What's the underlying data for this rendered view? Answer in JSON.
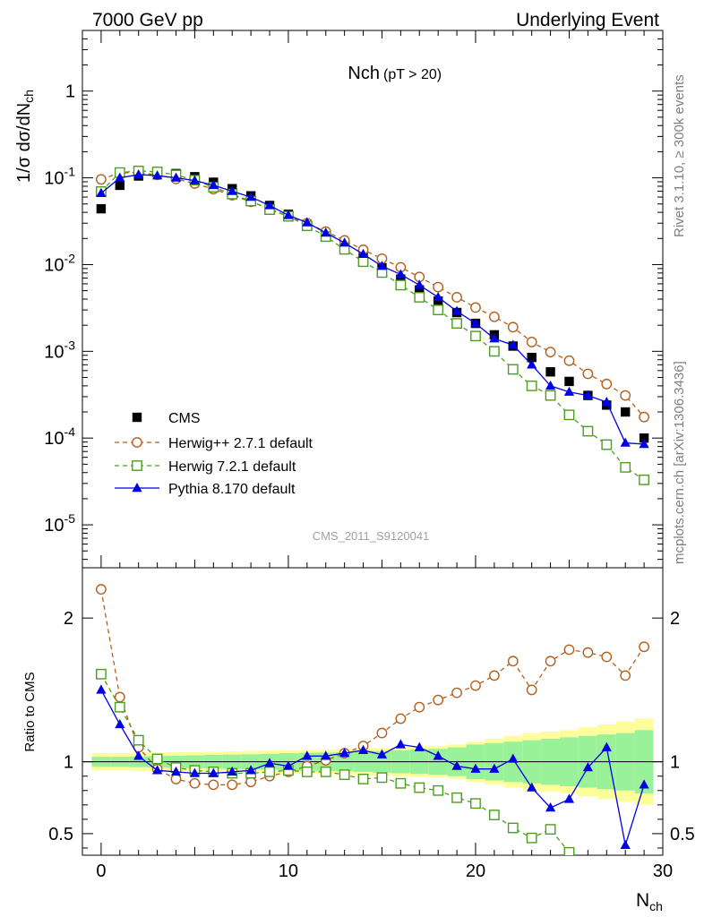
{
  "header": {
    "left": "7000 GeV pp",
    "right": "Underlying Event"
  },
  "side_text": {
    "rivet": "Rivet 3.1.10, ≥ 300k events",
    "mcplots": "mcplots.cern.ch [arXiv:1306.3436]"
  },
  "colors": {
    "cms": "#000000",
    "herwigpp": "#b2601f",
    "herwig7": "#4d9e1c",
    "pythia": "#0000e6",
    "band_inner": "#99f299",
    "band_outer": "#fdfd9b"
  },
  "chart_data": [
    {
      "type": "scatter",
      "title": "Nch",
      "title_suffix": "(pT > 20)",
      "watermark": "CMS_2011_S9120041",
      "ylabel": "1/σ dσ/dN",
      "ylabel_sub": "ch",
      "yscale": "log",
      "xlim": [
        -1,
        30
      ],
      "ylim": [
        3.2e-06,
        5
      ],
      "yticks": [
        "10^-5",
        "10^-4",
        "10^-3",
        "10^-2",
        "10^-1",
        "1"
      ],
      "legend_position": "lower-left",
      "x": [
        0,
        1,
        2,
        3,
        4,
        5,
        6,
        7,
        8,
        9,
        10,
        11,
        12,
        13,
        14,
        15,
        16,
        17,
        18,
        19,
        20,
        21,
        22,
        23,
        24,
        25,
        26,
        27,
        28,
        29
      ],
      "series": [
        {
          "name": "CMS",
          "style": "black filled squares",
          "values": [
            0.044,
            0.082,
            0.105,
            0.115,
            0.112,
            0.103,
            0.089,
            0.075,
            0.062,
            0.048,
            0.038,
            0.029,
            0.022,
            0.0165,
            0.0123,
            0.0092,
            0.0068,
            0.0051,
            0.0038,
            0.0028,
            0.0021,
            0.00155,
            0.00115,
            0.00085,
            0.00058,
            0.00045,
            0.00031,
            0.00024,
            0.0002,
            0.0001
          ]
        },
        {
          "name": "Herwig++ 2.7.1 default",
          "style": "dashed brown open circles",
          "values": [
            0.096,
            0.114,
            0.115,
            0.108,
            0.097,
            0.086,
            0.074,
            0.063,
            0.053,
            0.044,
            0.036,
            0.03,
            0.024,
            0.019,
            0.0148,
            0.0117,
            0.0093,
            0.0072,
            0.0055,
            0.0042,
            0.0032,
            0.0025,
            0.0019,
            0.00128,
            0.00098,
            0.00078,
            0.00055,
            0.00042,
            0.00031,
            0.000175
          ]
        },
        {
          "name": "Herwig 7.2.1 default",
          "style": "dashed green open squares",
          "values": [
            0.0695,
            0.115,
            0.12,
            0.117,
            0.108,
            0.094,
            0.078,
            0.065,
            0.054,
            0.043,
            0.036,
            0.028,
            0.021,
            0.015,
            0.0108,
            0.0081,
            0.0058,
            0.0042,
            0.003,
            0.0021,
            0.0015,
            0.001,
            0.00062,
            0.0004,
            0.00031,
            0.000185,
            0.00012,
            8.4e-05,
            4.6e-05,
            3.3e-05
          ]
        },
        {
          "name": "Pythia 8.170 default",
          "style": "solid blue triangles",
          "values": [
            0.0665,
            0.1,
            0.109,
            0.106,
            0.1,
            0.093,
            0.082,
            0.07,
            0.06,
            0.048,
            0.037,
            0.0305,
            0.0232,
            0.0178,
            0.0132,
            0.0096,
            0.0077,
            0.0058,
            0.0042,
            0.0029,
            0.0021,
            0.0014,
            0.00118,
            0.0007,
            0.0004,
            0.00034,
            0.00031,
            0.00026,
            8.8e-05,
            8.5e-05
          ]
        }
      ]
    },
    {
      "type": "scatter",
      "ylabel": "Ratio to CMS",
      "xlabel": "N",
      "xlabel_sub": "ch",
      "xlim": [
        -1,
        30
      ],
      "ylim": [
        0.35,
        2.35
      ],
      "xticks": [
        "0",
        "10",
        "20",
        "30"
      ],
      "yticks": [
        "0.5",
        "1",
        "2"
      ],
      "x": [
        0,
        1,
        2,
        3,
        4,
        5,
        6,
        7,
        8,
        9,
        10,
        11,
        12,
        13,
        14,
        15,
        16,
        17,
        18,
        19,
        20,
        21,
        22,
        23,
        24,
        25,
        26,
        27,
        28,
        29
      ],
      "bands": {
        "inner_half_width": [
          0.035,
          0.035,
          0.037,
          0.04,
          0.042,
          0.045,
          0.048,
          0.05,
          0.052,
          0.055,
          0.06,
          0.062,
          0.064,
          0.066,
          0.07,
          0.075,
          0.08,
          0.085,
          0.09,
          0.1,
          0.12,
          0.13,
          0.14,
          0.15,
          0.16,
          0.17,
          0.18,
          0.19,
          0.2,
          0.22
        ],
        "outer_half_width": [
          0.06,
          0.06,
          0.062,
          0.064,
          0.066,
          0.068,
          0.07,
          0.072,
          0.075,
          0.078,
          0.08,
          0.082,
          0.085,
          0.088,
          0.092,
          0.096,
          0.1,
          0.105,
          0.11,
          0.12,
          0.14,
          0.16,
          0.18,
          0.2,
          0.21,
          0.22,
          0.24,
          0.26,
          0.28,
          0.3
        ]
      },
      "series": [
        {
          "name": "Herwig++ 2.7.1 default",
          "values": [
            2.2,
            1.45,
            1.1,
            0.95,
            0.88,
            0.85,
            0.84,
            0.84,
            0.86,
            0.9,
            0.93,
            0.97,
            1.01,
            1.06,
            1.11,
            1.2,
            1.3,
            1.38,
            1.43,
            1.48,
            1.53,
            1.6,
            1.7,
            1.5,
            1.7,
            1.78,
            1.76,
            1.73,
            1.6,
            1.8
          ]
        },
        {
          "name": "Herwig 7.2.1 default",
          "values": [
            1.61,
            1.38,
            1.15,
            1.02,
            0.96,
            0.94,
            0.93,
            0.92,
            0.92,
            0.93,
            0.94,
            0.93,
            0.93,
            0.91,
            0.88,
            0.89,
            0.85,
            0.82,
            0.8,
            0.75,
            0.71,
            0.63,
            0.54,
            0.47,
            0.53,
            0.37,
            null,
            null,
            null,
            null
          ]
        },
        {
          "name": "Pythia 8.170 default",
          "values": [
            1.5,
            1.26,
            1.04,
            0.94,
            0.93,
            0.92,
            0.92,
            0.93,
            0.94,
            0.99,
            0.97,
            1.04,
            1.04,
            1.06,
            1.08,
            1.05,
            1.12,
            1.1,
            1.04,
            0.97,
            0.95,
            0.95,
            1.02,
            0.82,
            0.68,
            0.74,
            0.96,
            1.1,
            0.42,
            0.84
          ]
        }
      ]
    }
  ]
}
